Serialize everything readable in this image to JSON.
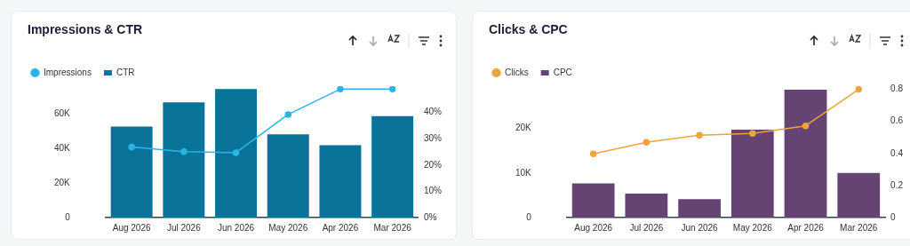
{
  "chart_data": [
    {
      "type": "bar",
      "title": "Impressions & CTR",
      "categories": [
        "Aug 2026",
        "Jul 2026",
        "Jun 2026",
        "May 2026",
        "Apr 2026",
        "Mar 2026"
      ],
      "series": [
        {
          "name": "Impressions",
          "type": "line",
          "color": "#29b6e6",
          "values": [
            40800,
            38100,
            37500,
            59600,
            74300,
            74300
          ]
        },
        {
          "name": "CTR",
          "axis": "y2",
          "color": "#0a7399",
          "values": [
            34.6,
            43.8,
            48.9,
            31.7,
            27.5,
            38.6
          ]
        }
      ],
      "ylim": [
        0,
        76000
      ],
      "yticks": [
        0,
        {
          "value": 20000,
          "label": "20K"
        },
        {
          "value": 40000,
          "label": "40K"
        },
        {
          "value": 60000,
          "label": "60K"
        }
      ],
      "y2lim": [
        0,
        50
      ],
      "y2ticks": [
        {
          "value": 0,
          "label": "0%"
        },
        {
          "value": 10,
          "label": "10%"
        },
        {
          "value": 20,
          "label": "20%"
        },
        {
          "value": 30,
          "label": "30%"
        },
        {
          "value": 40,
          "label": "40%"
        }
      ],
      "legend": "top left",
      "grid": false,
      "marker": "circle"
    },
    {
      "type": "bar",
      "title": "Clicks & CPC",
      "categories": [
        "Aug 2026",
        "Jul 2026",
        "Jun 2026",
        "May 2026",
        "Apr 2026",
        "Mar 2026"
      ],
      "series": [
        {
          "name": "Clicks",
          "type": "line",
          "color": "#eda43b",
          "values": [
            14300,
            16900,
            18500,
            18900,
            20600,
            28800
          ]
        },
        {
          "name": "CPC",
          "axis": "y2",
          "color": "#654373",
          "values": [
            0.213,
            0.149,
            0.115,
            0.549,
            0.798,
            0.279
          ]
        }
      ],
      "ylim": [
        0,
        29500
      ],
      "yticks": [
        0,
        {
          "value": 10000,
          "label": "10K"
        },
        {
          "value": 20000,
          "label": "20K"
        }
      ],
      "y2lim": [
        0,
        0.82
      ],
      "y2ticks": [
        0,
        0.2,
        0.4,
        0.6,
        0.8
      ],
      "legend": "top left",
      "grid": false,
      "marker": "circle"
    }
  ]
}
